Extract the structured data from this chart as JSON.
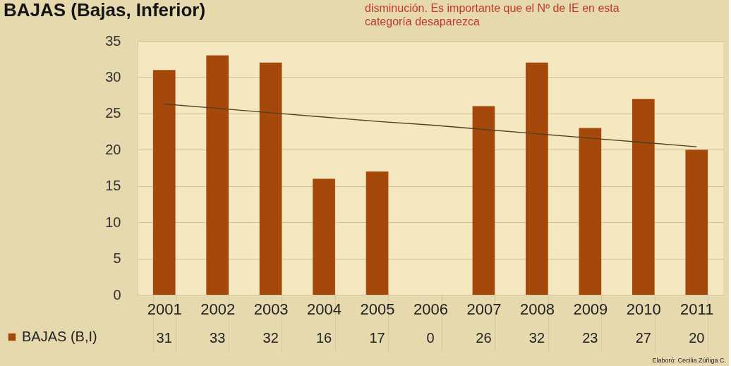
{
  "chart_data": {
    "type": "bar",
    "title": "BAJAS (Bajas, Inferior)",
    "categories": [
      "2001",
      "2002",
      "2003",
      "2004",
      "2005",
      "2006",
      "2007",
      "2008",
      "2009",
      "2010",
      "2011"
    ],
    "series": [
      {
        "name": "BAJAS (B,I)",
        "color": "#a5480c",
        "values": [
          31,
          33,
          32,
          16,
          17,
          0,
          26,
          32,
          23,
          27,
          20
        ],
        "value_labels": [
          "31",
          "33",
          "32",
          "16",
          "17",
          "0",
          "26",
          "32",
          "23",
          "27",
          "20"
        ]
      },
      {
        "type": "line",
        "color": "#4d4020",
        "values": [
          26.3,
          25.7,
          25.1,
          24.5,
          23.9,
          23.4,
          22.8,
          22.2,
          21.6,
          21.0,
          20.4
        ]
      }
    ],
    "ylim": [
      0,
      35
    ],
    "yticks": [
      0,
      5,
      10,
      15,
      20,
      25,
      30,
      35
    ],
    "grid": "y",
    "legend": "bottom left",
    "annotations": [
      "disminución. Es importante que el Nº de IE en esta categoría desaparezca",
      "Elaboró: Cecilia Zúñiga C."
    ]
  }
}
